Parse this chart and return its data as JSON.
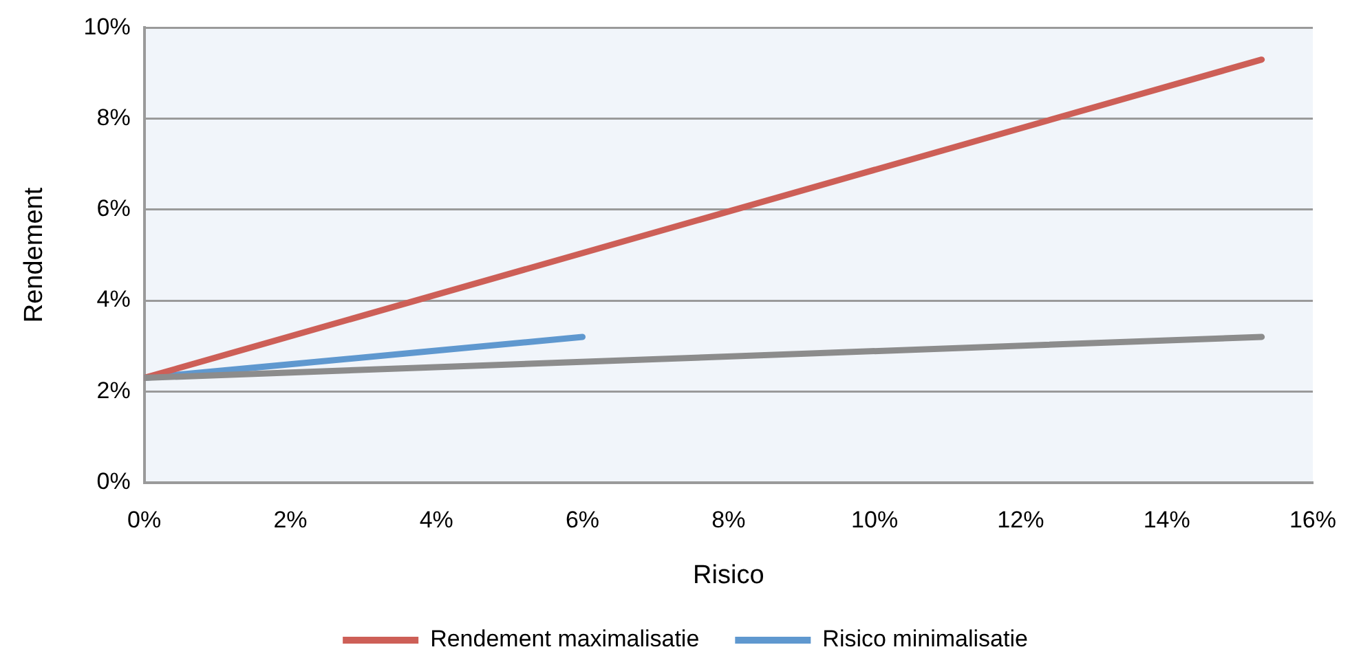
{
  "chart_data": {
    "type": "line",
    "xlabel": "Risico",
    "ylabel": "Rendement",
    "xlim": [
      0,
      16
    ],
    "xticks": [
      {
        "value": 0,
        "label": "0%"
      },
      {
        "value": 2,
        "label": "2%"
      },
      {
        "value": 4,
        "label": "4%"
      },
      {
        "value": 6,
        "label": "6%"
      },
      {
        "value": 8,
        "label": "8%"
      },
      {
        "value": 10,
        "label": "10%"
      },
      {
        "value": 12,
        "label": "12%"
      },
      {
        "value": 14,
        "label": "14%"
      },
      {
        "value": 16,
        "label": "16%"
      }
    ],
    "ylim": [
      0,
      10
    ],
    "yticks": [
      {
        "value": 0,
        "label": "0%"
      },
      {
        "value": 2,
        "label": "2%"
      },
      {
        "value": 4,
        "label": "4%"
      },
      {
        "value": 6,
        "label": "6%"
      },
      {
        "value": 8,
        "label": "8%"
      },
      {
        "value": 10,
        "label": "10%"
      }
    ],
    "grid": "y",
    "legend": "bottom",
    "marker": "none",
    "series": [
      {
        "color": "#8c8c8c",
        "x": [
          0,
          15.3
        ],
        "values": [
          2.3,
          3.2
        ]
      },
      {
        "name": "Rendement maximalisatie",
        "color": "#cd5f57",
        "x": [
          0,
          15.3
        ],
        "values": [
          2.3,
          9.3
        ]
      },
      {
        "name": "Risico minimalisatie",
        "color": "#5f98cf",
        "x": [
          0,
          6.0
        ],
        "values": [
          2.3,
          3.2
        ]
      }
    ]
  }
}
